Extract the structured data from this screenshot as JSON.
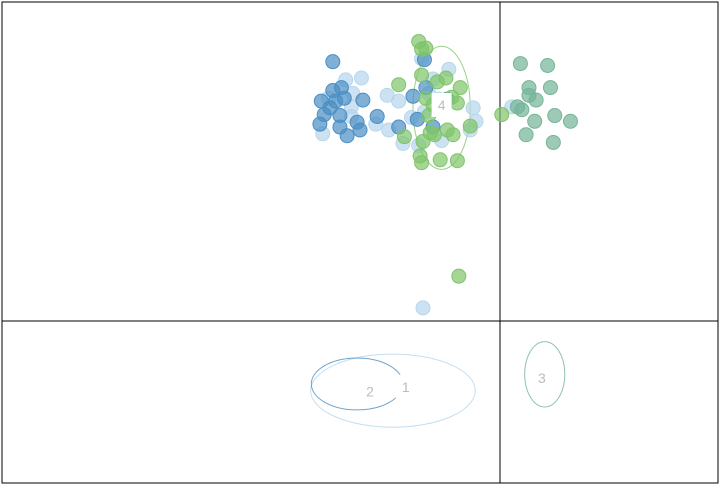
{
  "chart_data": {
    "type": "scatter",
    "xlim": [
      0,
      100
    ],
    "ylim": [
      0,
      100
    ],
    "grid": "2x2 panel lines",
    "series": [
      {
        "label": "1",
        "color": "#b7d6ec",
        "label_pos": [
          56.4,
          20.0
        ],
        "ellipse": {
          "cx": 54.6,
          "cy": 19.2,
          "rx": 11.5,
          "ry": 7.6
        },
        "points": [
          [
            58.6,
            88.2
          ],
          [
            60.2,
            84.0
          ],
          [
            65.8,
            78.0
          ],
          [
            66.2,
            75.2
          ],
          [
            65.4,
            73.4
          ],
          [
            61.0,
            79.8
          ],
          [
            59.0,
            77.2
          ],
          [
            57.2,
            76.0
          ],
          [
            55.4,
            79.4
          ],
          [
            54.0,
            73.4
          ],
          [
            56.0,
            70.6
          ],
          [
            58.2,
            70.2
          ],
          [
            59.6,
            81.0
          ],
          [
            52.2,
            74.6
          ],
          [
            48.8,
            78.2
          ],
          [
            49.0,
            81.0
          ],
          [
            45.6,
            80.0
          ],
          [
            48.8,
            76.2
          ],
          [
            44.8,
            72.6
          ],
          [
            61.4,
            71.2
          ],
          [
            62.4,
            86.0
          ],
          [
            53.8,
            80.6
          ],
          [
            50.2,
            84.2
          ],
          [
            48.0,
            83.8
          ],
          [
            71.2,
            78.2
          ]
        ]
      },
      {
        "label": "2",
        "color": "#4a8ec3",
        "label_pos": [
          51.4,
          19.0
        ],
        "ellipse": {
          "cx": 49.6,
          "cy": 20.6,
          "rx": 6.4,
          "ry": 5.4
        },
        "points": [
          [
            60.2,
            74.0
          ],
          [
            58.0,
            75.6
          ],
          [
            55.4,
            74.0
          ],
          [
            49.6,
            75.0
          ],
          [
            52.4,
            76.2
          ],
          [
            50.0,
            73.4
          ],
          [
            48.2,
            72.2
          ],
          [
            47.2,
            76.4
          ],
          [
            46.6,
            79.4
          ],
          [
            46.2,
            81.6
          ],
          [
            44.6,
            79.4
          ],
          [
            45.8,
            78.0
          ],
          [
            45.0,
            76.6
          ],
          [
            47.8,
            80.0
          ],
          [
            44.4,
            74.6
          ],
          [
            47.2,
            74.0
          ],
          [
            57.4,
            80.4
          ],
          [
            59.2,
            82.2
          ],
          [
            62.2,
            79.8
          ],
          [
            46.2,
            87.6
          ],
          [
            59.0,
            88.0
          ],
          [
            47.4,
            82.2
          ],
          [
            50.4,
            79.6
          ]
        ]
      },
      {
        "label": "3",
        "color": "#74b497",
        "label_pos": [
          75.4,
          21.8
        ],
        "ellipse": {
          "cx": 75.8,
          "cy": 22.6,
          "rx": 2.8,
          "ry": 6.8
        },
        "points": [
          [
            72.4,
            87.2
          ],
          [
            72.0,
            78.2
          ],
          [
            73.6,
            82.2
          ],
          [
            76.6,
            82.2
          ],
          [
            73.2,
            72.4
          ],
          [
            72.6,
            77.6
          ],
          [
            77.2,
            76.4
          ],
          [
            77.0,
            70.8
          ],
          [
            74.4,
            75.2
          ],
          [
            74.6,
            79.6
          ],
          [
            79.4,
            75.2
          ],
          [
            76.2,
            86.8
          ],
          [
            73.6,
            80.6
          ]
        ]
      },
      {
        "label": "4",
        "color": "#7fc46a",
        "label_pos": [
          61.4,
          78.6
        ],
        "ellipse": {
          "cx": 61.4,
          "cy": 78.0,
          "rx": 4.0,
          "ry": 12.8
        },
        "points": [
          [
            58.2,
            91.8
          ],
          [
            59.2,
            90.4
          ],
          [
            58.6,
            90.2
          ],
          [
            55.4,
            82.8
          ],
          [
            58.6,
            84.8
          ],
          [
            60.8,
            83.4
          ],
          [
            62.0,
            84.2
          ],
          [
            64.0,
            82.2
          ],
          [
            63.6,
            79.0
          ],
          [
            62.8,
            80.2
          ],
          [
            61.2,
            79.4
          ],
          [
            60.2,
            78.6
          ],
          [
            59.6,
            76.4
          ],
          [
            59.2,
            80.0
          ],
          [
            56.2,
            72.0
          ],
          [
            58.8,
            71.0
          ],
          [
            60.4,
            72.4
          ],
          [
            62.2,
            73.4
          ],
          [
            63.0,
            72.4
          ],
          [
            65.4,
            74.2
          ],
          [
            69.8,
            76.6
          ],
          [
            58.6,
            66.6
          ],
          [
            61.2,
            67.2
          ],
          [
            58.4,
            68.0
          ],
          [
            63.6,
            67.0
          ],
          [
            63.8,
            43.0
          ],
          [
            59.8,
            72.8
          ]
        ]
      }
    ],
    "outliers": [
      {
        "series_index": 0,
        "point": [
          58.8,
          36.4
        ]
      }
    ]
  }
}
